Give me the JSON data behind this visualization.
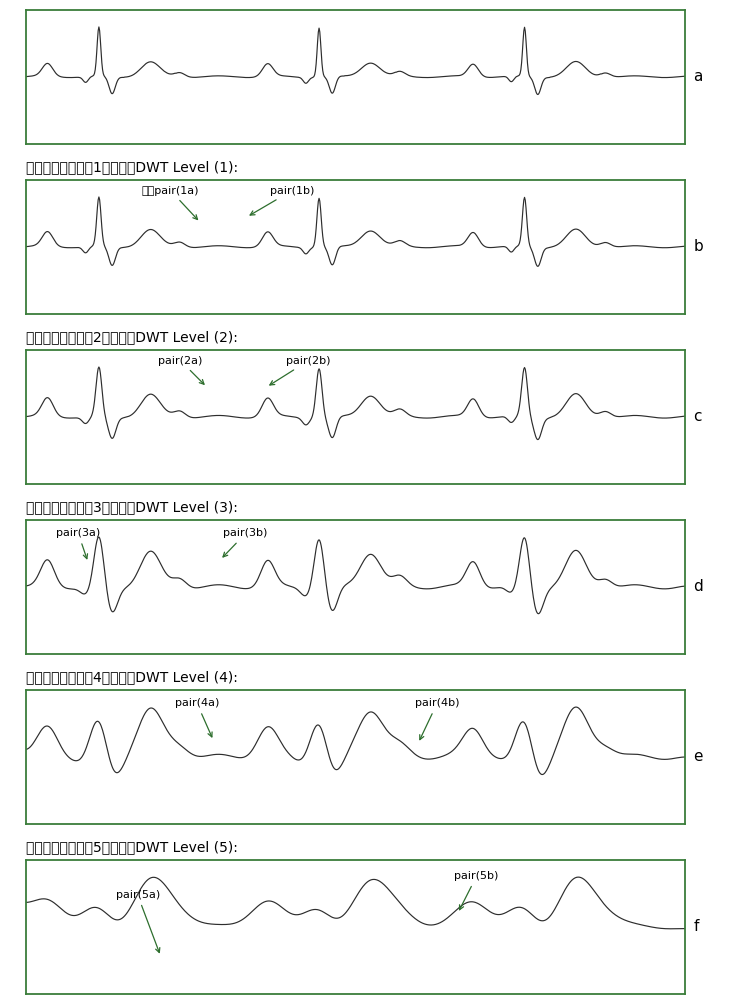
{
  "panel_labels": [
    "a",
    "b",
    "c",
    "d",
    "e",
    "f"
  ],
  "titles": [
    "",
    "离散小波变换第（1）分解级DWT Level (1):",
    "离散小波变换第（2）分解级DWT Level (2):",
    "离散小波变换第（3）分解级DWT Level (3):",
    "离散小波变换第（4）分解级DWT Level (4):",
    "离散小波变换第（5）分解级DWT Level (5):"
  ],
  "border_color": "#3a7d3a",
  "line_color": "#2d2d2d",
  "annotation_line_color": "#2d6e2d",
  "bg_color": "#ffffff",
  "title_font_color": "#000000",
  "panel_label_fontsize": 11,
  "title_fontsize": 10,
  "annotation_fontsize": 8
}
